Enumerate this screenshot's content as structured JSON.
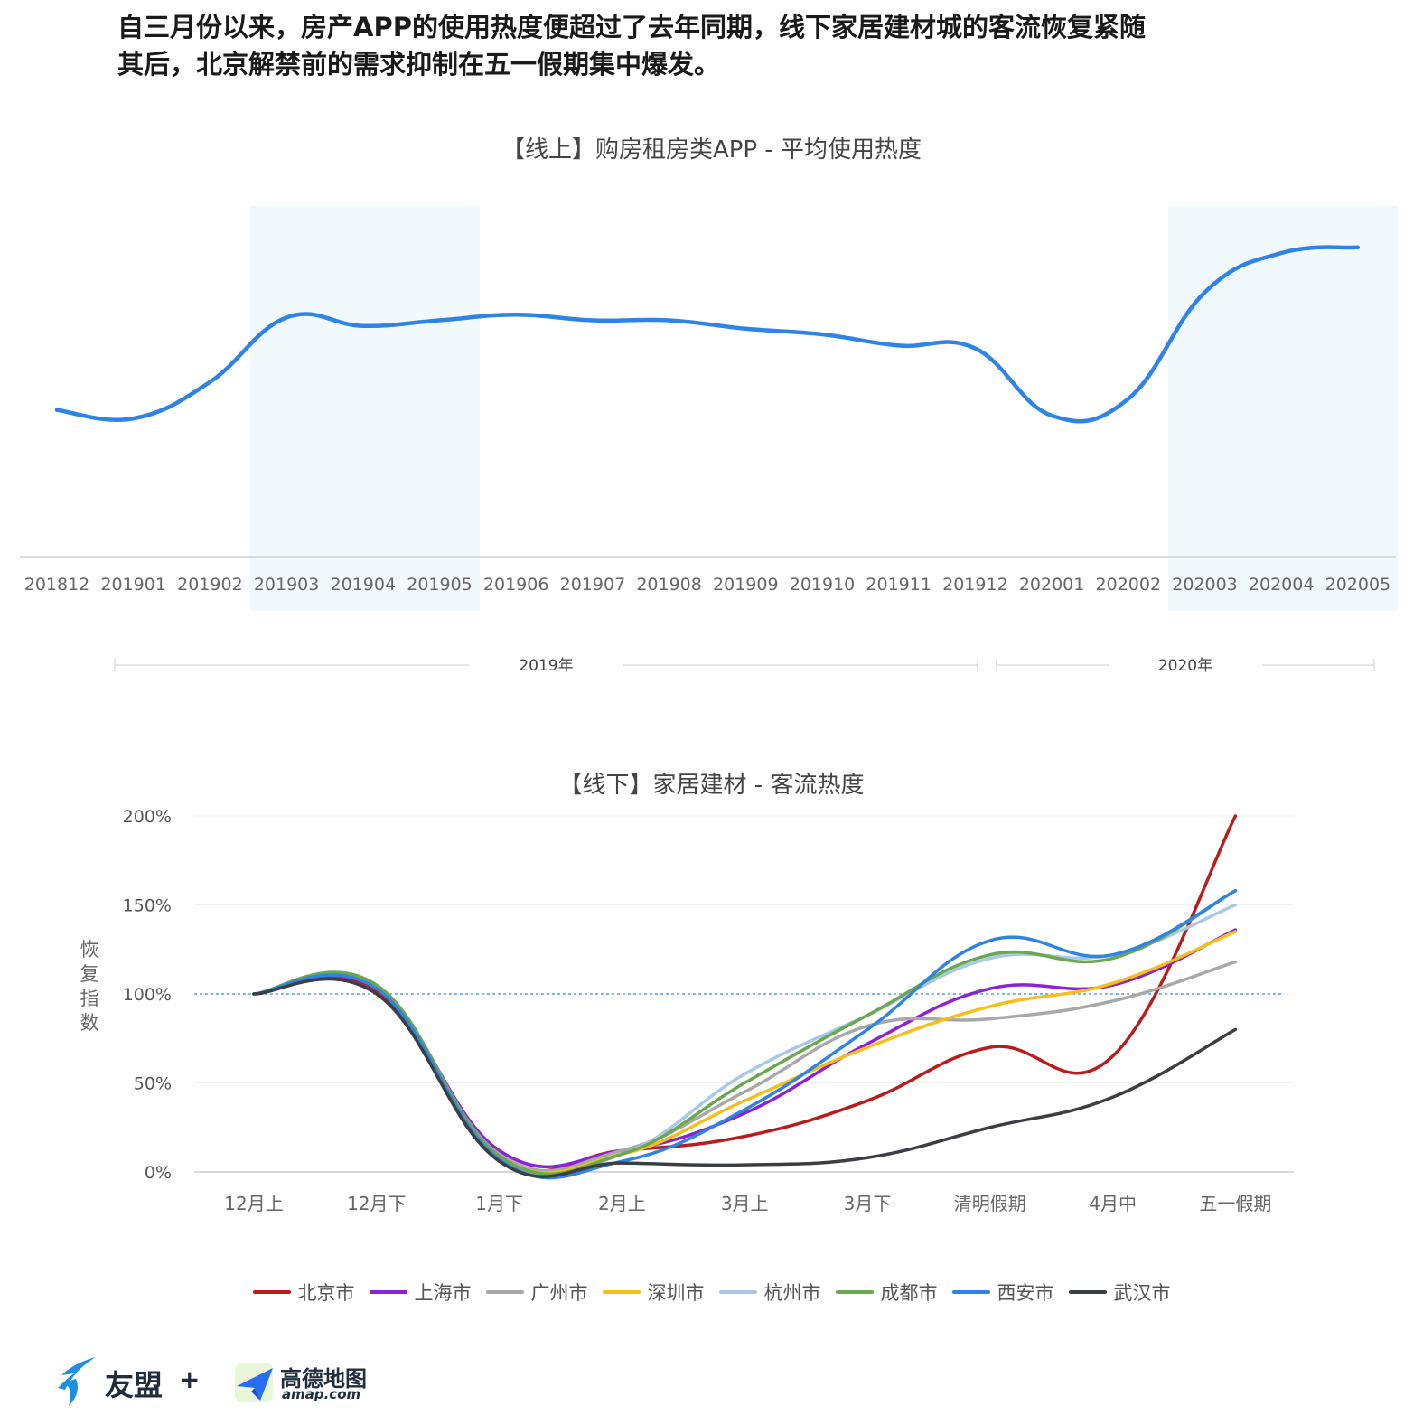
{
  "headline": {
    "line1": "自三月份以来，房产APP的使用热度便超过了去年同期，线下家居建材城的客流恢复紧随",
    "line2": "其后，北京解禁前的需求抑制在五一假期集中爆发。"
  },
  "chart_data": [
    {
      "type": "line",
      "title": "【线上】购房租房类APP - 平均使用热度",
      "categories": [
        "201812",
        "201901",
        "201902",
        "201903",
        "201904",
        "201905",
        "201906",
        "201907",
        "201908",
        "201909",
        "201910",
        "201911",
        "201912",
        "202001",
        "202002",
        "202003",
        "202004",
        "202005"
      ],
      "series": [
        {
          "values": [
            0.44,
            0.41,
            0.54,
            0.77,
            0.74,
            0.76,
            0.78,
            0.76,
            0.76,
            0.73,
            0.71,
            0.67,
            0.66,
            0.42,
            0.48,
            0.86,
            1.0,
            1.02
          ]
        }
      ],
      "highlight_ranges": [
        [
          "201903",
          "201905"
        ],
        [
          "202003",
          "202005"
        ]
      ],
      "year_groups": [
        {
          "label": "2019年",
          "from": "201901",
          "to": "201912"
        },
        {
          "label": "2020年",
          "from": "202001",
          "to": "202005"
        }
      ],
      "y_axis_visible": false,
      "color": "#2f83e4"
    },
    {
      "type": "line",
      "title": "【线下】家居建材 - 客流热度",
      "ylabel": "恢复指数",
      "categories": [
        "12月上",
        "12月下",
        "1月下",
        "2月上",
        "3月上",
        "3月下",
        "清明假期",
        "4月中",
        "五一假期"
      ],
      "yticks": [
        "0%",
        "50%",
        "100%",
        "150%",
        "200%"
      ],
      "ylim": [
        0,
        2.0
      ],
      "reference_line": 1.0,
      "legend_position": "bottom",
      "series": [
        {
          "name": "北京市",
          "color": "#b81c1c",
          "values": [
            1.0,
            1.02,
            0.08,
            0.12,
            0.2,
            0.4,
            0.7,
            0.65,
            2.0
          ]
        },
        {
          "name": "上海市",
          "color": "#8a22d6",
          "values": [
            1.0,
            1.03,
            0.12,
            0.12,
            0.33,
            0.72,
            1.03,
            1.05,
            1.36
          ]
        },
        {
          "name": "广州市",
          "color": "#a8a8a8",
          "values": [
            1.0,
            1.04,
            0.1,
            0.12,
            0.45,
            0.82,
            0.86,
            0.96,
            1.18
          ]
        },
        {
          "name": "深圳市",
          "color": "#f5be19",
          "values": [
            1.0,
            1.04,
            0.09,
            0.1,
            0.4,
            0.7,
            0.93,
            1.06,
            1.35
          ]
        },
        {
          "name": "杭州市",
          "color": "#a9c8e8",
          "values": [
            1.0,
            1.05,
            0.08,
            0.1,
            0.55,
            0.88,
            1.2,
            1.22,
            1.5
          ]
        },
        {
          "name": "成都市",
          "color": "#6aa84f",
          "values": [
            1.0,
            1.05,
            0.09,
            0.1,
            0.5,
            0.88,
            1.22,
            1.2,
            1.58
          ]
        },
        {
          "name": "西安市",
          "color": "#2f83e4",
          "values": [
            1.0,
            1.03,
            0.07,
            0.06,
            0.35,
            0.8,
            1.3,
            1.22,
            1.58
          ]
        },
        {
          "name": "武汉市",
          "color": "#3b3e42",
          "values": [
            1.0,
            1.0,
            0.06,
            0.05,
            0.04,
            0.08,
            0.25,
            0.42,
            0.8
          ]
        }
      ]
    }
  ],
  "footer": {
    "logo1_text": "友盟",
    "logo1_plus": "+",
    "logo2_text": "高德地图",
    "logo2_sub": "amap.com",
    "logo1_color": "#1a8fe3",
    "logo2_color": "#2a6df5"
  }
}
